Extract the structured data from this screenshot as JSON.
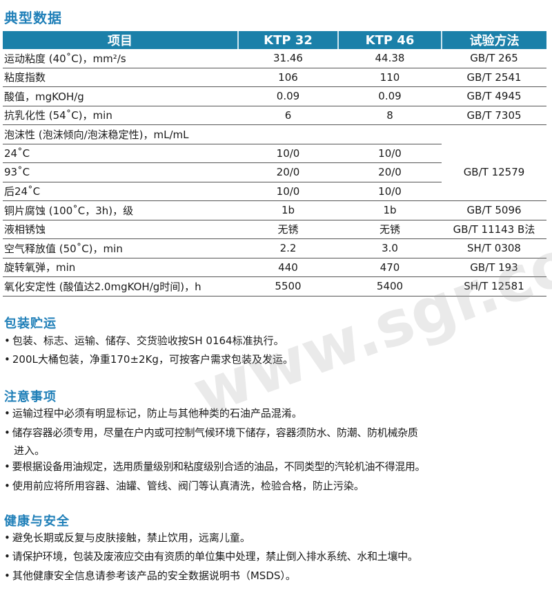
{
  "typical_data": {
    "heading": "典型数据",
    "columns": [
      "项目",
      "KTP 32",
      "KTP 46",
      "试验方法"
    ],
    "rows": [
      [
        "运动粘度 (40˚C)，mm²/s",
        "31.46",
        "44.38",
        "GB/T 265"
      ],
      [
        "粘度指数",
        "106",
        "110",
        "GB/T 2541"
      ],
      [
        "酸值，mgKOH/g",
        "0.09",
        "0.09",
        "GB/T 4945"
      ],
      [
        "抗乳化性 (54˚C)，min",
        "6",
        "8",
        "GB/T 7305"
      ],
      [
        "泡沫性 (泡沫倾向/泡沫稳定性)，mL/mL",
        "",
        "",
        ""
      ],
      [
        "24˚C",
        "10/0",
        "10/0",
        "GB/T 12579"
      ],
      [
        "93˚C",
        "20/0",
        "20/0",
        ""
      ],
      [
        "后24˚C",
        "10/0",
        "10/0",
        ""
      ],
      [
        "铜片腐蚀 (100˚C，3h)，级",
        "1b",
        "1b",
        "GB/T 5096"
      ],
      [
        "液相锈蚀",
        "无锈",
        "无锈",
        "GB/T 11143 B法"
      ],
      [
        "空气释放值 (50˚C)，min",
        "2.2",
        "3.0",
        "SH/T 0308"
      ],
      [
        "旋转氧弹，min",
        "440",
        "470",
        "GB/T 193"
      ],
      [
        "氧化安定性 (酸值达2.0mgKOH/g时间)，h",
        "5500",
        "5400",
        "SH/T 12581"
      ]
    ]
  },
  "packaging": {
    "heading": "包装贮运",
    "items": [
      "包装、标志、运输、储存、交货验收按SH 0164标准执行。",
      "200L大桶包装，净重170±2Kg，可按客户需求包装及发运。"
    ]
  },
  "notes": {
    "heading": "注意事项",
    "items": [
      "运输过程中必须有明显标记，防止与其他种类的石油产品混淆。",
      "储存容器必须专用，尽量在户内或可控制气候环境下储存，容器须防水、防潮、防机械杂质",
      "要根据设备用油规定，选用质量级别和粘度级别合适的油品，不同类型的汽轮机油不得混用。",
      "使用前应将所用容器、油罐、管线、阀门等认真清洗，检验合格，防止污染。"
    ],
    "continuation": "进入。"
  },
  "health": {
    "heading": "健康与安全",
    "items": [
      "避免长期或反复与皮肤接触，禁止饮用，远离儿童。",
      "请保护环境，包装及废液应交由有资质的单位集中处理，禁止倒入排水系统、水和土壤中。",
      "其他健康安全信息请参考该产品的安全数据说明书（MSDS）。"
    ]
  },
  "watermark": "www.sgr.com.cn",
  "colors": {
    "header_bg": "#1b80a9",
    "heading_text": "#1f7fb8"
  }
}
